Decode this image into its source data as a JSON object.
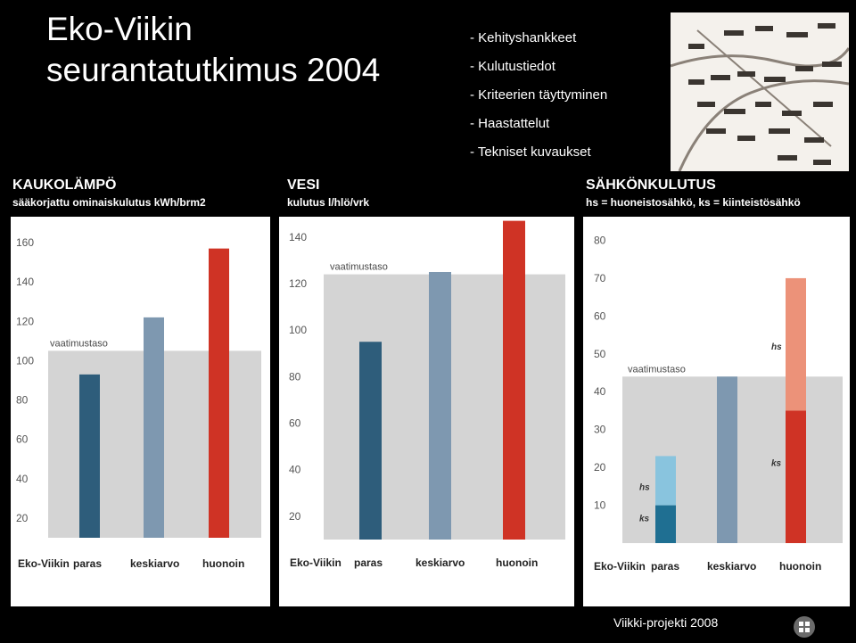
{
  "slide": {
    "title_line1": "Eko-Viikin",
    "title_line2": "seurantatutkimus 2004",
    "bullets": [
      "Kehityshankkeet",
      "Kulutustiedot",
      "Kriteerien täyttyminen",
      "Haastattelut",
      "Tekniset kuvaukset"
    ],
    "footer": "Viikki-projekti 2008"
  },
  "colors": {
    "background": "#000000",
    "reference_band": "#d4d4d4",
    "eko_viikki_bar": "#1f6f92",
    "eko_viikki_hs": "#89c4de",
    "best_bar": "#2e5d7b",
    "average_bar": "#7e98b0",
    "worst_bar": "#cf3325",
    "worst_hs": "#ec9279"
  },
  "chart_data": [
    {
      "type": "bar",
      "title": "KAUKOLÄMPÖ",
      "subtitle": "sääkorjattu ominaiskulutus kWh/brm2",
      "categories": [
        "Eko-Viikin",
        "paras",
        "keskiarvo",
        "huonoin"
      ],
      "values": [
        null,
        93,
        122,
        157
      ],
      "yticks": [
        20,
        40,
        60,
        80,
        100,
        120,
        140,
        160
      ],
      "ylim": [
        10,
        165
      ],
      "reference": {
        "label": "vaatimustaso",
        "value": 105
      },
      "grid": false
    },
    {
      "type": "bar",
      "title": "VESI",
      "subtitle": "kulutus l/hlö/vrk",
      "categories": [
        "Eko-Viikin",
        "paras",
        "keskiarvo",
        "huonoin"
      ],
      "values": [
        null,
        95,
        125,
        147
      ],
      "yticks": [
        20,
        40,
        60,
        80,
        100,
        120,
        140
      ],
      "ylim": [
        10,
        148
      ],
      "reference": {
        "label": "vaatimustaso",
        "value": 124
      },
      "grid": false
    },
    {
      "type": "bar",
      "title": "SÄHKÖNKULUTUS",
      "subtitle": "hs = huoneistosähkö, ks = kiinteistösähkö",
      "categories": [
        "Eko-Viikin",
        "paras",
        "keskiarvo",
        "huonoin"
      ],
      "series": [
        {
          "name": "ks",
          "values": [
            10,
            null,
            44,
            35
          ]
        },
        {
          "name": "hs",
          "values": [
            13,
            null,
            0,
            35
          ]
        }
      ],
      "yticks": [
        10,
        20,
        30,
        40,
        50,
        60,
        70,
        80
      ],
      "ylim": [
        0,
        82
      ],
      "reference": {
        "label": "vaatimustaso",
        "value": 44
      },
      "grid": false
    }
  ]
}
